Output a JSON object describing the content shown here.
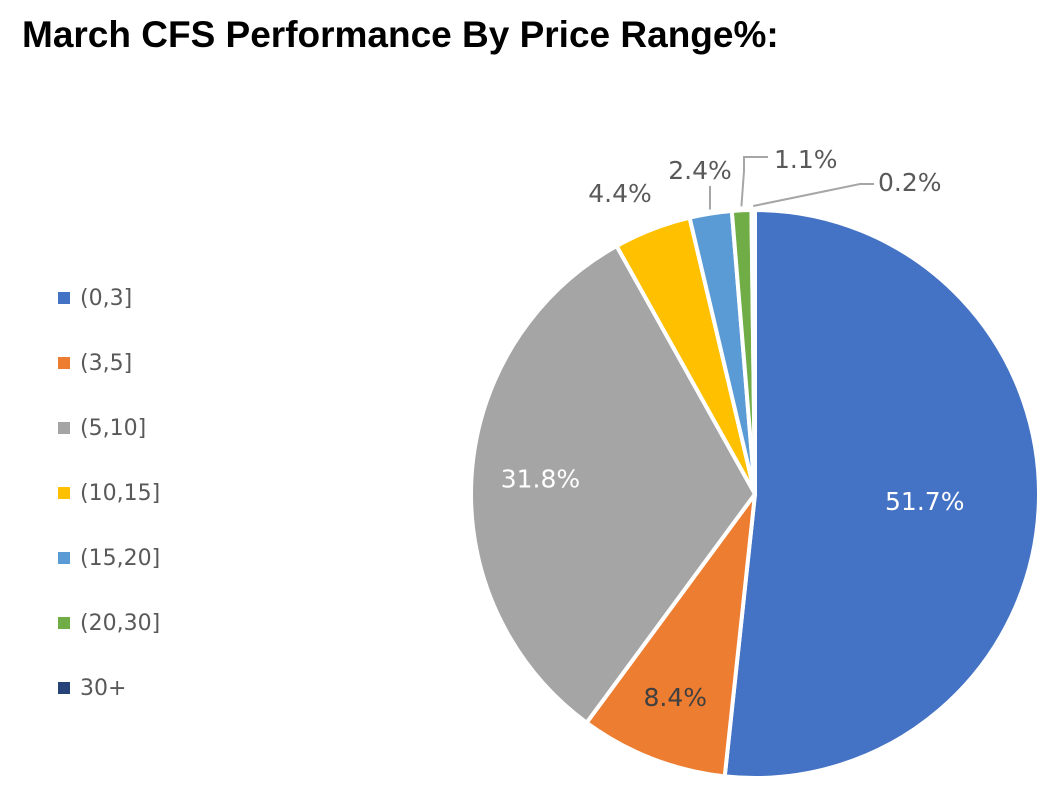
{
  "title": "March CFS Performance By Price Range%:",
  "chart_data": {
    "type": "pie",
    "title": "March CFS Performance By Price Range%:",
    "categories": [
      "(0,3]",
      "(3,5]",
      "(5,10]",
      "(10,15]",
      "(15,20]",
      "(20,30]",
      "30+"
    ],
    "values": [
      51.7,
      8.4,
      31.8,
      4.4,
      2.4,
      1.1,
      0.2
    ],
    "labels": [
      "51.7%",
      "8.4%",
      "31.8%",
      "4.4%",
      "2.4%",
      "1.1%",
      "0.2%"
    ],
    "colors": [
      "#4472C4",
      "#ED7D31",
      "#A5A5A5",
      "#FFC000",
      "#5B9BD5",
      "#70AD47",
      "#264478"
    ],
    "legend_position": "left",
    "start_angle": "12 o'clock",
    "direction": "clockwise"
  }
}
